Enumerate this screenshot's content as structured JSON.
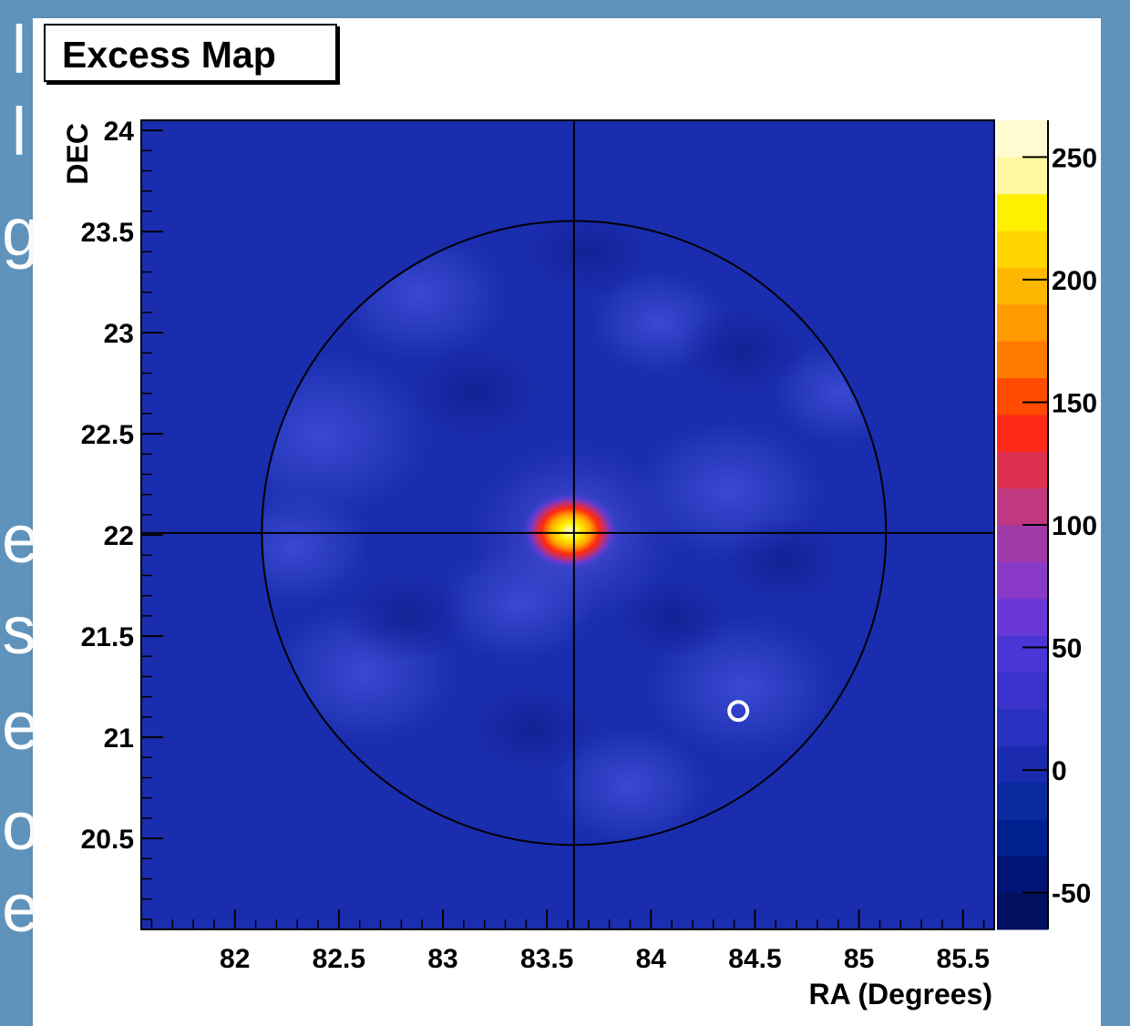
{
  "slide": {
    "left_column_glyphs": [
      "l",
      "l",
      "g",
      "e",
      "s",
      "e",
      "o",
      "e"
    ]
  },
  "chart_data": {
    "type": "heatmap",
    "title": "Excess Map",
    "xlabel": "RA (Degrees)",
    "ylabel": "DEC",
    "xlim": [
      81.55,
      85.65
    ],
    "ylim": [
      20.05,
      24.05
    ],
    "x_ticks": [
      "82",
      "82.5",
      "83",
      "83.5",
      "84",
      "84.5",
      "85",
      "85.5"
    ],
    "y_ticks": [
      "20.5",
      "21",
      "21.5",
      "22",
      "22.5",
      "23",
      "23.5",
      "24"
    ],
    "colorbar": {
      "range": [
        -65,
        265
      ],
      "tick_values": [
        -50,
        0,
        50,
        100,
        150,
        200,
        250
      ],
      "tick_labels": [
        "-50",
        "0",
        "50",
        "100",
        "150",
        "200",
        "250"
      ],
      "palette": [
        "#00105f",
        "#001478",
        "#00208f",
        "#0a2aa0",
        "#1a2bb0",
        "#2a30bf",
        "#3a32cc",
        "#4a35d6",
        "#6a38d8",
        "#8a3ac8",
        "#a03aa8",
        "#c03880",
        "#e03050",
        "#ff2a18",
        "#ff4a00",
        "#ff7a00",
        "#ff9a00",
        "#ffb800",
        "#ffd400",
        "#fff000",
        "#fff8a0",
        "#fffbd0"
      ]
    },
    "source": {
      "ra": 83.63,
      "dec": 22.01,
      "peak_excess": 260
    },
    "crosshair": {
      "ra": 83.63,
      "dec": 22.01
    },
    "fov_circle": {
      "center_ra": 83.63,
      "center_dec": 22.01,
      "radius_deg": 1.5
    },
    "marker": {
      "ra": 84.42,
      "dec": 21.13,
      "style": "open-circle",
      "color": "#ffffff"
    },
    "background_color": "#1a2dae"
  }
}
